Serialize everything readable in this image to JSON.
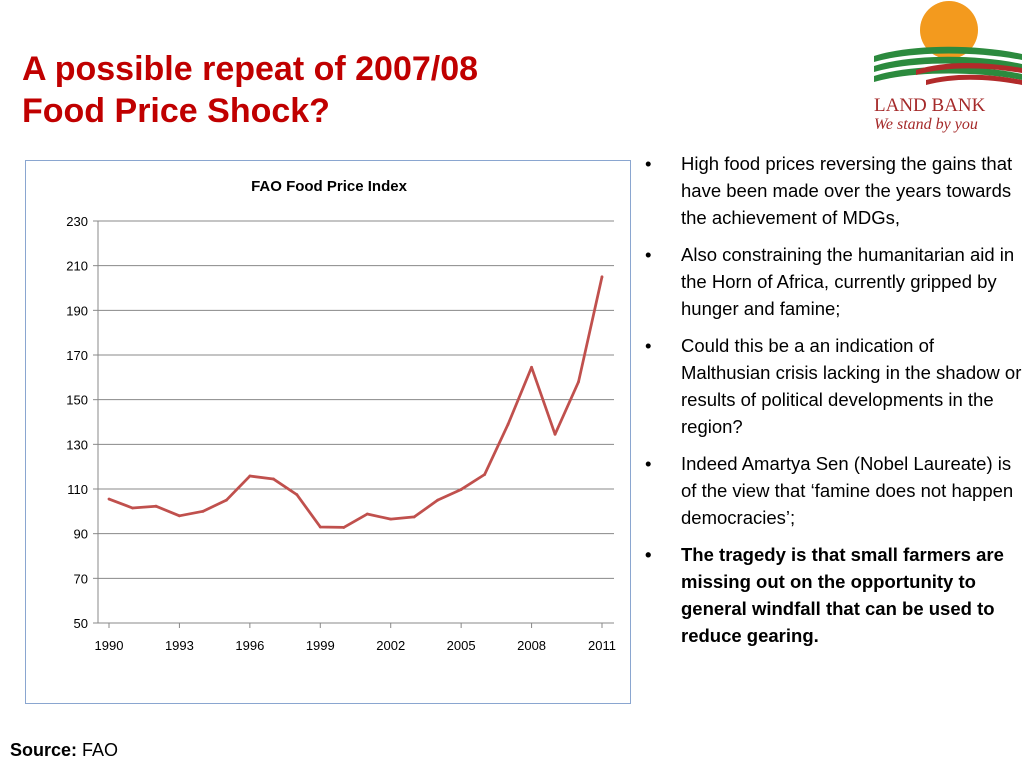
{
  "slide": {
    "title_line1": "A possible repeat of 2007/08",
    "title_line2": "Food Price Shock?",
    "logo": {
      "name": "LAND BANK",
      "tagline": "We stand by you"
    },
    "bullets": [
      {
        "text": "High food prices reversing the gains that have been made over the years towards the achievement of MDGs,",
        "bold": false
      },
      {
        "text": "Also constraining the humanitarian aid in the Horn of Africa, currently gripped by hunger and famine;",
        "bold": false
      },
      {
        "text": "Could this be a an indication of Malthusian crisis lacking in the shadow or results of political developments in the region?",
        "bold": false
      },
      {
        "text": "Indeed Amartya Sen (Nobel Laureate) is of the view that ‘famine does not happen democracies’;",
        "bold": false
      },
      {
        "text": "The tragedy is that small farmers are missing out on the opportunity to general windfall that can be used to reduce gearing.",
        "bold": true
      }
    ],
    "bullet_symbol": "•",
    "source_label": "Source:",
    "source_value": "FAO"
  },
  "chart_data": {
    "type": "line",
    "title": "FAO Food Price Index",
    "xlabel": "",
    "ylabel": "",
    "x": [
      1990,
      1991,
      1992,
      1993,
      1994,
      1995,
      1996,
      1997,
      1998,
      1999,
      2000,
      2001,
      2002,
      2003,
      2004,
      2005,
      2006,
      2007,
      2008,
      2009,
      2010,
      2011
    ],
    "series": [
      {
        "values": [
          105.5,
          101.5,
          102.3,
          98.0,
          100.0,
          105.0,
          115.8,
          114.5,
          107.5,
          93.0,
          92.8,
          98.8,
          96.5,
          97.5,
          105.0,
          109.8,
          116.5,
          139.0,
          164.5,
          134.5,
          158.0,
          205.0
        ]
      }
    ],
    "x_ticks": [
      1990,
      1993,
      1996,
      1999,
      2002,
      2005,
      2008,
      2011
    ],
    "y_ticks": [
      50,
      70,
      90,
      110,
      130,
      150,
      170,
      190,
      210,
      230
    ],
    "ylim": [
      50,
      230
    ],
    "grid": true,
    "legend": "none",
    "colors": {
      "line": "#c0504d",
      "grid": "#888888",
      "axis": "#888888",
      "title": "#c00000",
      "frame": "#8aa6d0"
    }
  }
}
